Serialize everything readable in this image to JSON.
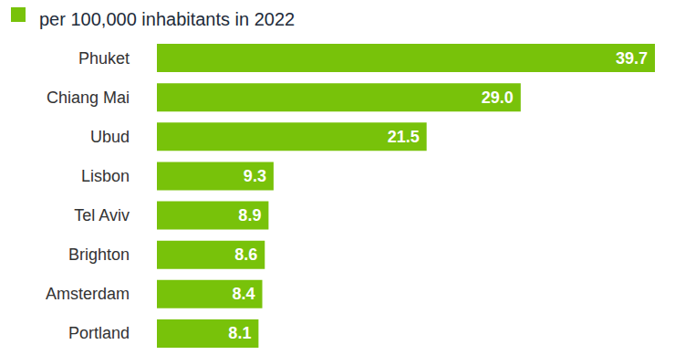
{
  "chart_data": {
    "type": "bar",
    "subtitle": "per 100,000 inhabitants in 2022",
    "orientation": "horizontal",
    "categories": [
      "Phuket",
      "Chiang Mai",
      "Ubud",
      "Lisbon",
      "Tel Aviv",
      "Brighton",
      "Amsterdam",
      "Portland"
    ],
    "values": [
      39.7,
      29.0,
      21.5,
      9.3,
      8.9,
      8.6,
      8.4,
      8.1
    ],
    "value_labels": [
      "39.7",
      "29.0",
      "21.5",
      "9.3",
      "8.9",
      "8.6",
      "8.4",
      "8.1"
    ],
    "color": "#78c20a",
    "data_labels": true,
    "grid": false,
    "tick_labels": "y"
  }
}
